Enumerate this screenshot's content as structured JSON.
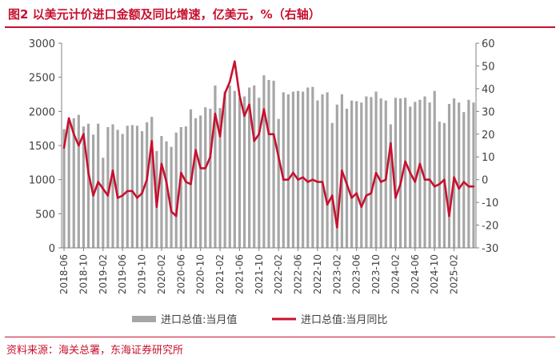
{
  "figure": {
    "title": "图2  以美元计价进口金额及同比增速，亿美元，%（右轴）",
    "source": "资料来源：海关总署，东海证券研究所"
  },
  "colors": {
    "bar": "#a6a6a6",
    "line": "#c8102e",
    "axis": "#808080",
    "text": "#404040"
  },
  "chart_data": {
    "type": "bar+line",
    "categories": [
      "2018-06",
      "2018-07",
      "2018-08",
      "2018-09",
      "2018-10",
      "2018-11",
      "2018-12",
      "2019-01",
      "2019-02",
      "2019-03",
      "2019-04",
      "2019-05",
      "2019-06",
      "2019-07",
      "2019-08",
      "2019-09",
      "2019-10",
      "2019-11",
      "2019-12",
      "2020-01",
      "2020-02",
      "2020-03",
      "2020-04",
      "2020-05",
      "2020-06",
      "2020-07",
      "2020-08",
      "2020-09",
      "2020-10",
      "2020-11",
      "2020-12",
      "2021-01",
      "2021-02",
      "2021-03",
      "2021-04",
      "2021-05",
      "2021-06",
      "2021-07",
      "2021-08",
      "2021-09",
      "2021-10",
      "2021-11",
      "2021-12",
      "2022-01",
      "2022-02",
      "2022-03",
      "2022-04",
      "2022-05",
      "2022-06",
      "2022-07",
      "2022-08",
      "2022-09",
      "2022-10",
      "2022-11",
      "2022-12",
      "2023-01",
      "2023-02",
      "2023-03",
      "2023-04",
      "2023-05",
      "2023-06",
      "2023-07",
      "2023-08",
      "2023-09",
      "2023-10",
      "2023-11",
      "2023-12",
      "2024-01",
      "2024-02",
      "2024-03",
      "2024-04",
      "2024-05",
      "2024-06",
      "2024-07",
      "2024-08",
      "2024-09",
      "2024-10",
      "2024-11",
      "2024-12",
      "2025-01",
      "2025-02",
      "2025-03",
      "2025-04",
      "2025-05",
      "2025-06"
    ],
    "x_tick_labels": [
      "2018-06",
      "2018-10",
      "2019-02",
      "2019-06",
      "2019-10",
      "2020-02",
      "2020-06",
      "2020-10",
      "2021-02",
      "2021-06",
      "2021-10",
      "2022-02",
      "2022-06",
      "2022-10",
      "2023-02",
      "2023-06",
      "2023-10",
      "2024-02",
      "2024-06",
      "2024-10",
      "2025-02"
    ],
    "series": [
      {
        "name": "进口总值:当月值",
        "type": "bar",
        "axis": "left",
        "values": [
          1740,
          1860,
          1900,
          1950,
          1780,
          1820,
          1660,
          1820,
          1320,
          1770,
          1810,
          1730,
          1670,
          1790,
          1800,
          1790,
          1710,
          1840,
          1920,
          1420,
          1640,
          1560,
          1480,
          1690,
          1770,
          1780,
          2030,
          1900,
          1940,
          2060,
          2040,
          2380,
          2050,
          2290,
          2380,
          2300,
          2200,
          2220,
          2350,
          2380,
          2200,
          2530,
          2460,
          2450,
          1890,
          2280,
          2250,
          2290,
          2300,
          2290,
          2350,
          2360,
          2160,
          2250,
          2280,
          1830,
          2100,
          2250,
          2040,
          2160,
          2150,
          2130,
          2220,
          2210,
          2290,
          2190,
          2160,
          1810,
          2200,
          2190,
          2200,
          2070,
          2140,
          2170,
          2220,
          2130,
          2300,
          1850,
          1830,
          2110,
          2190,
          2130,
          1990,
          2170,
          2130
        ]
      },
      {
        "name": "进口总值:当月同比",
        "type": "line",
        "axis": "right",
        "values": [
          14,
          27,
          20,
          15,
          20,
          3,
          -7,
          -1,
          -4,
          -7,
          4,
          -8,
          -7,
          -5,
          -5,
          -8,
          -6,
          0,
          17,
          -12,
          7,
          -1,
          -14,
          -16,
          3,
          -1,
          -2,
          13,
          5,
          5,
          10,
          29,
          19,
          38,
          43,
          52,
          37,
          28,
          33,
          17,
          20,
          31,
          20,
          20,
          10,
          0,
          0,
          3,
          0,
          1,
          -1,
          0,
          -1,
          -1,
          -11,
          -7,
          -21,
          4,
          -2,
          -8,
          -6,
          -12,
          -7,
          -6,
          3,
          -1,
          0,
          16,
          -8,
          -2,
          8,
          3,
          -1,
          7,
          0,
          0,
          -3,
          -2,
          0,
          -16,
          1,
          -4,
          -1,
          -3,
          -3
        ]
      }
    ],
    "left_axis": {
      "min": 0,
      "max": 3000,
      "ticks": [
        0,
        500,
        1000,
        1500,
        2000,
        2500,
        3000
      ]
    },
    "right_axis": {
      "min": -30,
      "max": 60,
      "ticks": [
        -30,
        -20,
        -10,
        0,
        10,
        20,
        30,
        40,
        50,
        60
      ]
    },
    "legend_position": "bottom-center",
    "grid": false
  }
}
